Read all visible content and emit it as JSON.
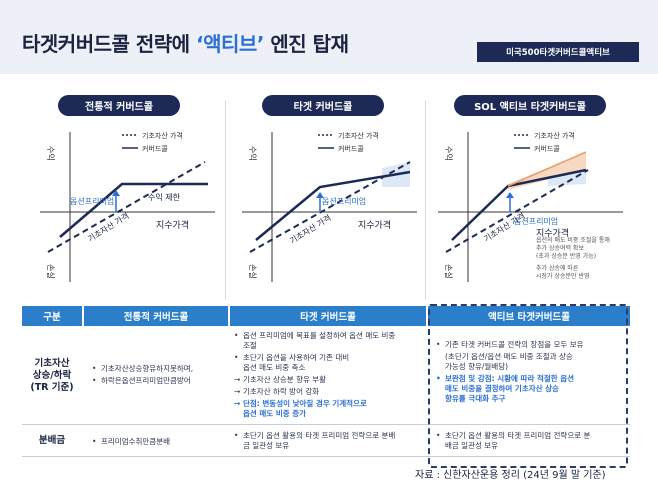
{
  "header": {
    "title_prefix": "타겟커버드콜 전략에 ",
    "title_accent": "‘액티브’",
    "title_suffix": " 엔진 탑재",
    "tag": "미국500타겟커버드콜액티브"
  },
  "panels": [
    {
      "title": "전통적 커버드콜",
      "legend_dotted": "기초자산 가격",
      "legend_solid": "커버드콜",
      "axis_y_top": "수익",
      "axis_y_bottom": "손실",
      "axis_x": "지수가격",
      "premium_label": "옵션프리미엄",
      "underlying_label": "기초자산 가격",
      "cap_label": "수익 제한"
    },
    {
      "title": "타겟 커버드콜",
      "legend_dotted": "기초자산 가격",
      "legend_solid": "커버드콜",
      "axis_y_top": "수익",
      "axis_y_bottom": "손실",
      "axis_x": "지수가격",
      "premium_label": "옵션프리미엄",
      "underlying_label": "기초자산 가격"
    },
    {
      "title": "SOL 액티브 타겟커버드콜",
      "legend_dotted": "기초자산 가격",
      "legend_solid": "커버드콜",
      "axis_y_top": "수익",
      "axis_y_bottom": "손실",
      "axis_x": "지수가격",
      "premium_label": "옵션프리미엄",
      "underlying_label": "기초자산 가격",
      "note_a_1": "옵션의 매도 비중 조절을 통해",
      "note_a_2": "추가 상승여력 확보",
      "note_a_3": "(초과 상승분 반영 가능)",
      "note_b_1": "추가 상승에 따른",
      "note_b_2": "시장가 상승분만 반영"
    }
  ],
  "table": {
    "headers": [
      "구분",
      "전통적 커버드콜",
      "타겟 커버드콜",
      "액티브 타겟커버드콜"
    ],
    "row1_label": [
      "기초자산",
      "상승/하락",
      "(TR 기준)"
    ],
    "row1_traditional": [
      "기초자산상승향유하지못하며,",
      "하락은옵션프리미엄만큼방어"
    ],
    "row1_target": {
      "b1": [
        "옵션 프리미엄에 목표를 설정하여 옵션 매도 비중",
        "조절"
      ],
      "b2": [
        "초단기 옵션을 사용하여 기존 대비",
        "옵션 매도 비중 축소"
      ],
      "a1": "기초자산 상승분 향유 부활",
      "a2": "기초자산 하락 방어 강화",
      "blue": [
        "단점: 변동성이 낮아질 경우 기계적으로",
        "옵션 매도 비중 증가"
      ]
    },
    "row1_active": {
      "b1": "기존 타겟 커버드콜 전략의 장점을 모두 보유",
      "sub": [
        "(초단기 옵션/옵션 매도 비중 조절과 상승",
        "가능성 향유/월배당)"
      ],
      "blue": [
        "보완점 및 강점: 시황에 따라 적절한 옵션",
        "매도 비중을 결정하여 기초자산 상승",
        "향유를 극대화 추구"
      ]
    },
    "row2_label": "분배금",
    "row2_traditional": "프리미엄수취만큼분배",
    "row2_target": [
      "초단기 옵션 활용의 타겟 프리미엄 전략으로 분배",
      "금 일관성 보유"
    ],
    "row2_active": [
      "초단기 옵션 활용의 타겟 프리미엄 전략으로 분",
      "배금 일관성 보유"
    ]
  },
  "source": "자료 : 신한자산운용 정리 (24년 9월 말 기준)",
  "colors": {
    "navy": "#1d2a55",
    "accent_blue": "#2b6fd3",
    "table_header": "#2b7ec9",
    "header_bg": "#eef0f7",
    "shade_orange": "#f7d9c2",
    "shade_blue": "#dce8f6"
  }
}
